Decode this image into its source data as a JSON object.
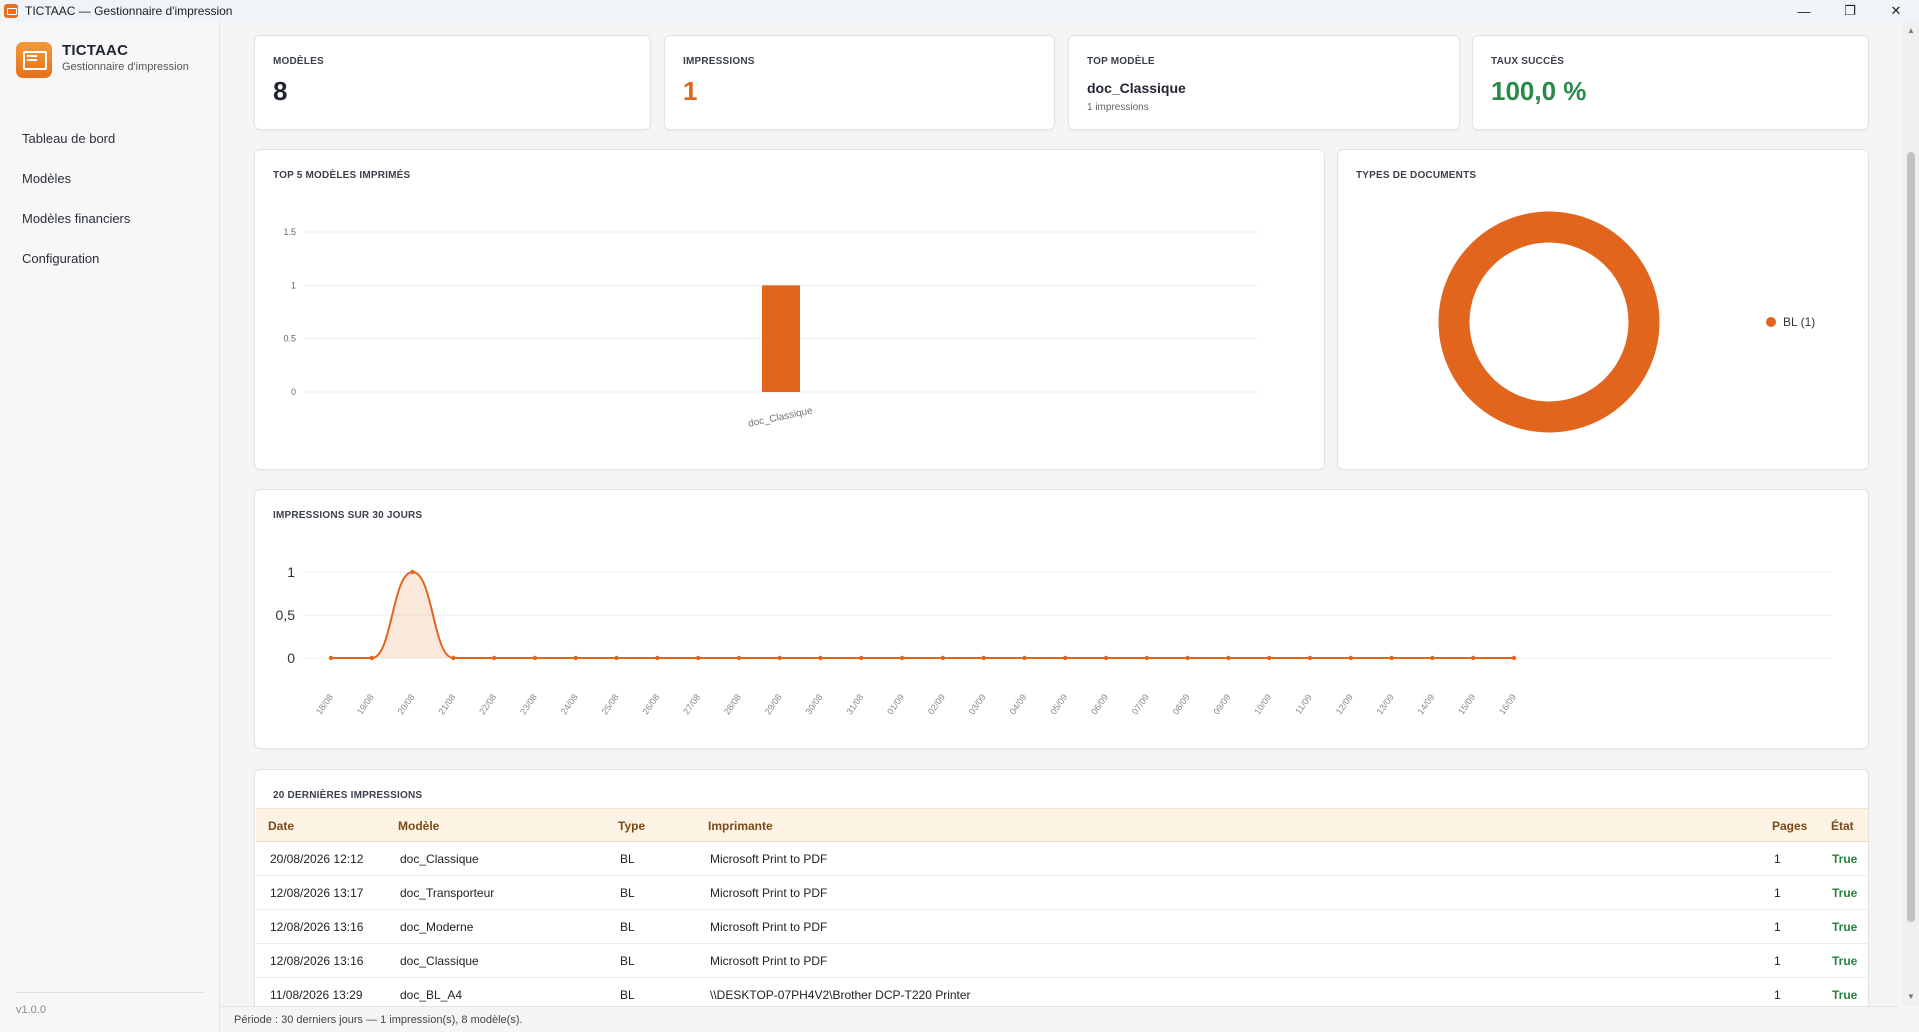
{
  "window": {
    "title": "TICTAAC — Gestionnaire d'impression",
    "controls": {
      "minimize": "—",
      "restore": "❐",
      "close": "✕"
    }
  },
  "sidebar": {
    "brand": {
      "name": "TICTAAC",
      "subtitle": "Gestionnaire d'impression",
      "icon": "printer-logo-icon"
    },
    "items": [
      {
        "label": "Tableau de bord"
      },
      {
        "label": "Modèles"
      },
      {
        "label": "Modèles financiers"
      },
      {
        "label": "Configuration"
      }
    ],
    "version": "v1.0.0"
  },
  "kpis": {
    "models": {
      "label": "MODÈLES",
      "value": "8"
    },
    "impressions": {
      "label": "IMPRESSIONS",
      "value": "1"
    },
    "top_model": {
      "label": "TOP MODÈLE",
      "name": "doc_Classique",
      "sub": "1 impressions"
    },
    "success_rate": {
      "label": "TAUX SUCCÈS",
      "value": "100,0 %"
    }
  },
  "colors": {
    "accent": "#e2651d",
    "success": "#2a8a4a",
    "dark": "#1f2430"
  },
  "chart_data": [
    {
      "type": "bar",
      "title": "TOP 5 MODÈLES IMPRIMÉS",
      "categories": [
        "doc_Classique"
      ],
      "values": [
        1
      ],
      "ylim": [
        0,
        1.5
      ],
      "yticks": [
        "0",
        "0.5",
        "1",
        "1.5"
      ],
      "grid": true
    },
    {
      "type": "pie",
      "title": "TYPES DE DOCUMENTS",
      "donut": true,
      "slices": [
        {
          "label": "BL",
          "value": 1
        }
      ],
      "legend": [
        "BL (1)"
      ],
      "legend_position": "right"
    },
    {
      "type": "area",
      "title": "IMPRESSIONS SUR 30 JOURS",
      "x": [
        "18/08",
        "19/08",
        "20/08",
        "21/08",
        "22/08",
        "23/08",
        "24/08",
        "25/08",
        "26/08",
        "27/08",
        "28/08",
        "29/08",
        "30/08",
        "31/08",
        "01/09",
        "02/09",
        "03/09",
        "04/09",
        "05/09",
        "06/09",
        "07/09",
        "08/09",
        "09/09",
        "10/09",
        "11/09",
        "12/09",
        "13/09",
        "14/09",
        "15/09",
        "16/09"
      ],
      "values": [
        0,
        0,
        1,
        0,
        0,
        0,
        0,
        0,
        0,
        0,
        0,
        0,
        0,
        0,
        0,
        0,
        0,
        0,
        0,
        0,
        0,
        0,
        0,
        0,
        0,
        0,
        0,
        0,
        0,
        0
      ],
      "ylim": [
        0,
        1
      ],
      "yticks": [
        "0",
        "0,5",
        "1"
      ],
      "grid": true
    }
  ],
  "table": {
    "title": "20 DERNIÈRES IMPRESSIONS",
    "columns": [
      "Date",
      "Modèle",
      "Type",
      "Imprimante",
      "Pages",
      "État"
    ],
    "rows": [
      [
        "20/08/2026 12:12",
        "doc_Classique",
        "BL",
        "Microsoft Print to PDF",
        "1",
        "True"
      ],
      [
        "12/08/2026 13:17",
        "doc_Transporteur",
        "BL",
        "Microsoft Print to PDF",
        "1",
        "True"
      ],
      [
        "12/08/2026 13:16",
        "doc_Moderne",
        "BL",
        "Microsoft Print to PDF",
        "1",
        "True"
      ],
      [
        "12/08/2026 13:16",
        "doc_Classique",
        "BL",
        "Microsoft Print to PDF",
        "1",
        "True"
      ],
      [
        "11/08/2026 13:29",
        "doc_BL_A4",
        "BL",
        "\\\\DESKTOP-07PH4V2\\Brother DCP-T220 Printer",
        "1",
        "True"
      ]
    ]
  },
  "footer": {
    "status": "Période : 30 derniers jours — 1 impression(s), 8 modèle(s)."
  }
}
